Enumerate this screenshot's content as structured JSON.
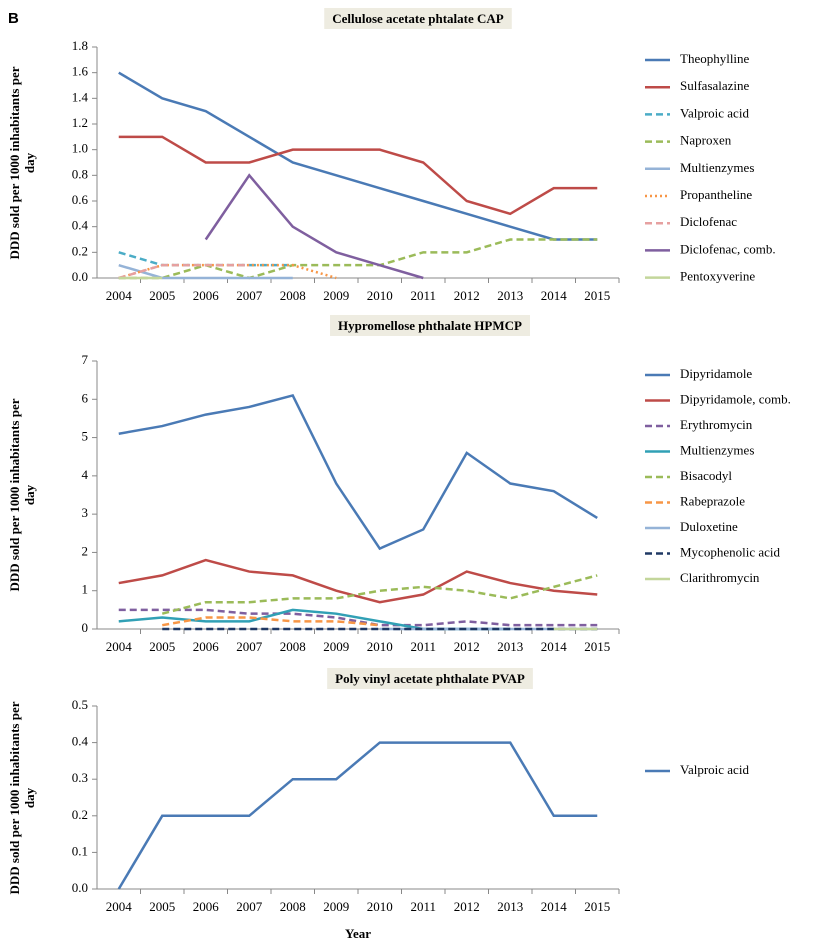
{
  "panel_label": "B",
  "chart_data": [
    {
      "type": "line",
      "title": "Cellulose acetate phtalate CAP",
      "ylabel": "DDD sold per 1000 inhabitants per day",
      "categories": [
        "2004",
        "2005",
        "2006",
        "2007",
        "2008",
        "2009",
        "2010",
        "2011",
        "2012",
        "2013",
        "2014",
        "2015"
      ],
      "ylim": [
        0,
        1.8
      ],
      "yticks": [
        {
          "value": 0,
          "label": "0.0"
        },
        0.2,
        0.4,
        0.6,
        0.8,
        {
          "value": 1,
          "label": "1.0"
        },
        1.2,
        1.4,
        1.6,
        1.8
      ],
      "legend": "right",
      "series": [
        {
          "name": "Theophylline",
          "color": "#4a7ab5",
          "style": "solid",
          "values": [
            1.6,
            1.4,
            1.3,
            1.1,
            0.9,
            0.8,
            0.7,
            0.6,
            0.5,
            0.4,
            0.3,
            0.3
          ]
        },
        {
          "name": "Sulfasalazine",
          "color": "#be4b48",
          "style": "solid",
          "values": [
            1.1,
            1.1,
            0.9,
            0.9,
            1.0,
            1.0,
            1.0,
            0.9,
            0.6,
            0.5,
            0.7,
            0.7
          ]
        },
        {
          "name": "Valproic acid",
          "color": "#4bacc6",
          "style": "dashed",
          "values": [
            0.2,
            0.1,
            0.1,
            0.1,
            0.1,
            null,
            null,
            null,
            null,
            null,
            null,
            null
          ]
        },
        {
          "name": "Naproxen",
          "color": "#9bbb59",
          "style": "dashed",
          "values": [
            0.0,
            0.0,
            0.1,
            0.0,
            0.1,
            0.1,
            0.1,
            0.2,
            0.2,
            0.3,
            0.3,
            0.3
          ]
        },
        {
          "name": "Multienzymes",
          "color": "#95b3d7",
          "style": "solid",
          "values": [
            0.1,
            0.0,
            0.0,
            0.0,
            0.0,
            null,
            null,
            null,
            null,
            null,
            null,
            null
          ]
        },
        {
          "name": "Propantheline",
          "color": "#f79646",
          "style": "dotted",
          "values": [
            0.0,
            0.1,
            0.1,
            0.1,
            0.1,
            0.0,
            null,
            null,
            null,
            null,
            null,
            null
          ]
        },
        {
          "name": "Diclofenac",
          "color": "#e6a0a0",
          "style": "dashed",
          "values": [
            0.0,
            0.1,
            0.1,
            0.1,
            null,
            null,
            null,
            null,
            null,
            null,
            null,
            null
          ]
        },
        {
          "name": "Diclofenac, comb.",
          "color": "#7f5f9f",
          "style": "solid",
          "values": [
            null,
            null,
            0.3,
            0.8,
            0.4,
            0.2,
            0.1,
            0.0,
            null,
            null,
            null,
            null
          ]
        },
        {
          "name": "Pentoxyverine",
          "color": "#c3d69b",
          "style": "solid",
          "values": [
            0.0,
            0.0,
            null,
            null,
            null,
            null,
            null,
            null,
            null,
            null,
            null,
            null
          ]
        }
      ]
    },
    {
      "type": "line",
      "title": "Hypromellose phthalate HPMCP",
      "ylabel": "DDD sold per 1000 inhabitants per day",
      "categories": [
        "2004",
        "2005",
        "2006",
        "2007",
        "2008",
        "2009",
        "2010",
        "2011",
        "2012",
        "2013",
        "2014",
        "2015"
      ],
      "ylim": [
        0,
        7
      ],
      "yticks": [
        0,
        1,
        2,
        3,
        4,
        5,
        6,
        7
      ],
      "legend": "right",
      "series": [
        {
          "name": "Dipyridamole",
          "color": "#4a7ab5",
          "style": "solid",
          "values": [
            5.1,
            5.3,
            5.6,
            5.8,
            6.1,
            3.8,
            2.1,
            2.6,
            4.6,
            3.8,
            3.6,
            2.9
          ]
        },
        {
          "name": "Dipyridamole, comb.",
          "color": "#be4b48",
          "style": "solid",
          "values": [
            1.2,
            1.4,
            1.8,
            1.5,
            1.4,
            1.0,
            0.7,
            0.9,
            1.5,
            1.2,
            1.0,
            0.9
          ]
        },
        {
          "name": "Erythromycin",
          "color": "#7f5f9f",
          "style": "dashed",
          "values": [
            0.5,
            0.5,
            0.5,
            0.4,
            0.4,
            0.3,
            0.1,
            0.1,
            0.2,
            0.1,
            0.1,
            0.1
          ]
        },
        {
          "name": "Multienzymes",
          "color": "#31a0b5",
          "style": "solid",
          "values": [
            0.2,
            0.3,
            0.2,
            0.2,
            0.5,
            0.4,
            0.2,
            0.0,
            0.0,
            0.0,
            null,
            null
          ]
        },
        {
          "name": "Bisacodyl",
          "color": "#9bbb59",
          "style": "dashed",
          "values": [
            null,
            0.4,
            0.7,
            0.7,
            0.8,
            0.8,
            1.0,
            1.1,
            1.0,
            0.8,
            1.1,
            1.4
          ]
        },
        {
          "name": "Rabeprazole",
          "color": "#f79646",
          "style": "dashed",
          "values": [
            null,
            0.1,
            0.3,
            0.3,
            0.2,
            0.2,
            0.1,
            null,
            null,
            null,
            null,
            null
          ]
        },
        {
          "name": "Duloxetine",
          "color": "#95b3d7",
          "style": "solid",
          "values": [
            null,
            null,
            null,
            null,
            null,
            null,
            0.0,
            0.0,
            0.0,
            0.0,
            0.0,
            0.0
          ]
        },
        {
          "name": "Mycophenolic acid",
          "color": "#1f3864",
          "style": "dashed",
          "values": [
            null,
            0.0,
            0.0,
            0.0,
            0.0,
            0.0,
            0.0,
            0.0,
            0.0,
            0.0,
            0.0,
            0.0
          ]
        },
        {
          "name": "Clarithromycin",
          "color": "#c3d69b",
          "style": "solid",
          "values": [
            null,
            null,
            null,
            null,
            null,
            null,
            null,
            null,
            null,
            null,
            0.0,
            0.0
          ]
        }
      ]
    },
    {
      "type": "line",
      "title": "Poly vinyl acetate phthalate PVAP",
      "ylabel": "DDD sold per 1000 inhabitants per day",
      "xlabel": "Year",
      "categories": [
        "2004",
        "2005",
        "2006",
        "2007",
        "2008",
        "2009",
        "2010",
        "2011",
        "2012",
        "2013",
        "2014",
        "2015"
      ],
      "ylim": [
        0,
        0.5
      ],
      "yticks": [
        {
          "value": 0,
          "label": "0.0"
        },
        0.1,
        0.2,
        0.3,
        0.4,
        0.5
      ],
      "legend": "right",
      "series": [
        {
          "name": "Valproic acid",
          "color": "#4a7ab5",
          "style": "solid",
          "values": [
            0.0,
            0.2,
            0.2,
            0.2,
            0.3,
            0.3,
            0.4,
            0.4,
            0.4,
            0.4,
            0.2,
            0.2
          ]
        }
      ]
    }
  ]
}
